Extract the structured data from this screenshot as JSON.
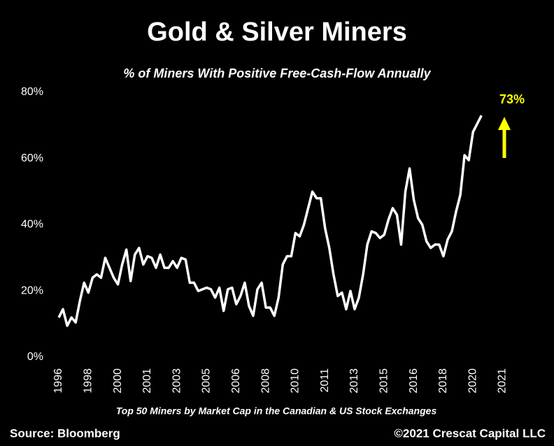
{
  "chart_data": {
    "type": "line",
    "title": "Gold & Silver Miners",
    "subtitle": "% of Miners With Positive Free-Cash-Flow Annually",
    "footnote": "Top 50 Miners by Market Cap in the Canadian & US Stock Exchanges",
    "source": "Source: Bloomberg",
    "credit": "©2021 Crescat Capital LLC",
    "annotation": {
      "text": "73%",
      "color": "#ffff00"
    },
    "categories": [
      "1996",
      null,
      null,
      null,
      null,
      null,
      null,
      "1998",
      null,
      null,
      null,
      null,
      null,
      null,
      "2000",
      null,
      null,
      null,
      null,
      null,
      null,
      "2001",
      null,
      null,
      null,
      null,
      null,
      null,
      "2003",
      null,
      null,
      null,
      null,
      null,
      null,
      "2005",
      null,
      null,
      null,
      null,
      null,
      null,
      "2006",
      null,
      null,
      null,
      null,
      null,
      null,
      "2008",
      null,
      null,
      null,
      null,
      null,
      null,
      "2010",
      null,
      null,
      null,
      null,
      null,
      null,
      "2011",
      null,
      null,
      null,
      null,
      null,
      null,
      "2013",
      null,
      null,
      null,
      null,
      null,
      null,
      "2015",
      null,
      null,
      null,
      null,
      null,
      null,
      "2016",
      null,
      null,
      null,
      null,
      null,
      null,
      "2018",
      null,
      null,
      null,
      null,
      null,
      null,
      "2020",
      null,
      null,
      null,
      null,
      null,
      null,
      "2021"
    ],
    "series": [
      {
        "name": "% of miners with positive FCF",
        "color": "#ffffff",
        "values": [
          12,
          14.5,
          9.5,
          12,
          10.5,
          17,
          22.5,
          19.5,
          24,
          25,
          24,
          30,
          27,
          24,
          22,
          28,
          32.5,
          23,
          31,
          33,
          28,
          30.5,
          30,
          27,
          31,
          27,
          27,
          29,
          27,
          30,
          29.5,
          22.5,
          22.5,
          20,
          20.5,
          21,
          20.5,
          18,
          21,
          14,
          20.5,
          21,
          16,
          18.5,
          22.5,
          15.5,
          12.5,
          20.5,
          22.5,
          15,
          15,
          12.5,
          18,
          28,
          30.5,
          30.5,
          37.5,
          36.5,
          40,
          45,
          50,
          48,
          48,
          39,
          33,
          25,
          18.5,
          19.5,
          14.5,
          20,
          14.5,
          18,
          25,
          34,
          38,
          37.5,
          36,
          37,
          41.5,
          45,
          43,
          34,
          50,
          57,
          47.5,
          42,
          40,
          35,
          33,
          34,
          34,
          30.5,
          35.5,
          38,
          44,
          49,
          61,
          59.5,
          68,
          70.5,
          73,
          null,
          null,
          null,
          null,
          null
        ]
      }
    ],
    "ylim": [
      0,
      80
    ],
    "yticks": [
      {
        "value": 0,
        "label": "0%"
      },
      {
        "value": 20,
        "label": "20%"
      },
      {
        "value": 40,
        "label": "40%"
      },
      {
        "value": 60,
        "label": "60%"
      },
      {
        "value": 80,
        "label": "80%"
      }
    ],
    "grid": false
  }
}
